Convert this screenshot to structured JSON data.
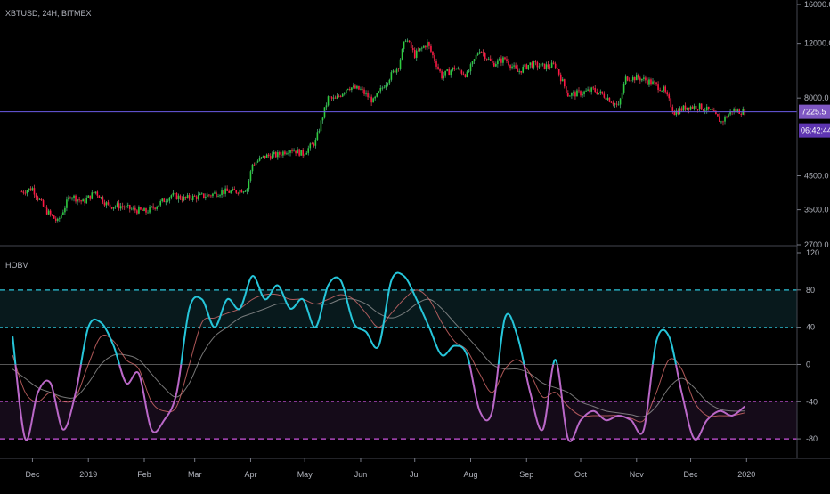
{
  "chart_data": [
    {
      "type": "candlestick",
      "title": "XBTUSD, 24H, BITMEX",
      "price_scale": "log",
      "yticks": [
        16000.0,
        12000.0,
        8000.0,
        4500.0,
        3500.0,
        2700.0
      ],
      "ytick_labels": [
        "16000.0",
        "12000.0",
        "8000.0",
        "4500.0",
        "3500.0",
        "2700.0"
      ],
      "ylim": [
        2700,
        16000
      ],
      "last_price": 7225.5,
      "last_price_label": "7225.5",
      "countdown_label": "06:42:44",
      "series": [
        {
          "name": "XBTUSD",
          "dates": [
            "2018-11-25",
            "2018-12-01",
            "2018-12-08",
            "2018-12-15",
            "2018-12-22",
            "2018-12-29",
            "2019-01-05",
            "2019-01-12",
            "2019-01-19",
            "2019-01-26",
            "2019-02-02",
            "2019-02-09",
            "2019-02-16",
            "2019-02-23",
            "2019-03-02",
            "2019-03-09",
            "2019-03-16",
            "2019-03-23",
            "2019-03-30",
            "2019-04-02",
            "2019-04-09",
            "2019-04-16",
            "2019-04-23",
            "2019-04-30",
            "2019-05-07",
            "2019-05-11",
            "2019-05-14",
            "2019-05-18",
            "2019-05-25",
            "2019-06-01",
            "2019-06-08",
            "2019-06-15",
            "2019-06-22",
            "2019-06-26",
            "2019-07-01",
            "2019-07-08",
            "2019-07-16",
            "2019-07-23",
            "2019-07-30",
            "2019-08-06",
            "2019-08-13",
            "2019-08-20",
            "2019-08-27",
            "2019-09-03",
            "2019-09-10",
            "2019-09-17",
            "2019-09-24",
            "2019-10-01",
            "2019-10-08",
            "2019-10-15",
            "2019-10-22",
            "2019-10-26",
            "2019-11-02",
            "2019-11-09",
            "2019-11-16",
            "2019-11-22",
            "2019-11-29",
            "2019-12-06",
            "2019-12-13",
            "2019-12-18",
            "2019-12-24",
            "2019-12-31"
          ],
          "close": [
            4000,
            4100,
            3500,
            3200,
            3900,
            3700,
            4000,
            3600,
            3600,
            3500,
            3450,
            3650,
            3900,
            3800,
            3850,
            3900,
            4000,
            4000,
            4100,
            4900,
            5200,
            5250,
            5500,
            5300,
            5800,
            7000,
            8000,
            7900,
            8700,
            8500,
            7800,
            9000,
            10200,
            12500,
            11000,
            12000,
            9400,
            10000,
            9500,
            11500,
            10300,
            10700,
            9700,
            10300,
            10100,
            10200,
            8200,
            8300,
            8500,
            8100,
            7500,
            9300,
            9300,
            9000,
            8500,
            7200,
            7500,
            7500,
            7200,
            6700,
            7300,
            7225.5
          ]
        }
      ]
    },
    {
      "type": "line",
      "title": "HOBV",
      "ylim": [
        -100,
        120
      ],
      "yticks": [
        120,
        80,
        40,
        0,
        -40,
        -80
      ],
      "ytick_labels": [
        "120",
        "80",
        "40",
        "0",
        "-40",
        "-80"
      ],
      "levels": [
        80,
        40,
        0,
        -40,
        -80
      ],
      "x_ticks": [
        {
          "date": "2018-12-01",
          "label": "Dec"
        },
        {
          "date": "2019-01-01",
          "label": "2019"
        },
        {
          "date": "2019-02-01",
          "label": "Feb"
        },
        {
          "date": "2019-03-01",
          "label": "Mar"
        },
        {
          "date": "2019-04-01",
          "label": "Apr"
        },
        {
          "date": "2019-05-01",
          "label": "May"
        },
        {
          "date": "2019-06-01",
          "label": "Jun"
        },
        {
          "date": "2019-07-01",
          "label": "Jul"
        },
        {
          "date": "2019-08-01",
          "label": "Aug"
        },
        {
          "date": "2019-09-01",
          "label": "Sep"
        },
        {
          "date": "2019-10-01",
          "label": "Oct"
        },
        {
          "date": "2019-11-01",
          "label": "Nov"
        },
        {
          "date": "2019-12-01",
          "label": "Dec"
        },
        {
          "date": "2020-01-01",
          "label": "2020"
        }
      ],
      "x": [
        "2018-11-20",
        "2018-11-27",
        "2018-12-04",
        "2018-12-11",
        "2018-12-18",
        "2018-12-25",
        "2019-01-01",
        "2019-01-08",
        "2019-01-15",
        "2019-01-22",
        "2019-01-29",
        "2019-02-05",
        "2019-02-12",
        "2019-02-19",
        "2019-02-26",
        "2019-03-05",
        "2019-03-12",
        "2019-03-19",
        "2019-03-26",
        "2019-04-02",
        "2019-04-09",
        "2019-04-16",
        "2019-04-23",
        "2019-04-30",
        "2019-05-07",
        "2019-05-14",
        "2019-05-21",
        "2019-05-28",
        "2019-06-04",
        "2019-06-11",
        "2019-06-18",
        "2019-06-25",
        "2019-07-02",
        "2019-07-09",
        "2019-07-16",
        "2019-07-23",
        "2019-07-30",
        "2019-08-06",
        "2019-08-13",
        "2019-08-20",
        "2019-08-27",
        "2019-09-03",
        "2019-09-10",
        "2019-09-17",
        "2019-09-24",
        "2019-10-01",
        "2019-10-08",
        "2019-10-15",
        "2019-10-22",
        "2019-10-29",
        "2019-11-05",
        "2019-11-12",
        "2019-11-19",
        "2019-11-26",
        "2019-12-03",
        "2019-12-10",
        "2019-12-17",
        "2019-12-24",
        "2019-12-31"
      ],
      "series": [
        {
          "color": "#00bcd4",
          "values": [
            30,
            -80,
            -30,
            -20,
            -70,
            -30,
            40,
            45,
            20,
            -20,
            -10,
            -70,
            -60,
            -30,
            60,
            70,
            40,
            70,
            60,
            95,
            70,
            85,
            60,
            70,
            40,
            85,
            90,
            45,
            35,
            20,
            90,
            95,
            70,
            40,
            10,
            20,
            10,
            -50,
            -50,
            50,
            30,
            -30,
            -70,
            5,
            -80,
            -60,
            -50,
            -60,
            -55,
            -60,
            -70,
            25,
            30,
            -30,
            -80,
            -60,
            -50,
            -55,
            -45
          ],
          "color_above_zero": "#26c6da",
          "color_below_zero": "#ba68c8"
        },
        {
          "color": "#e57373",
          "values": [
            10,
            -30,
            -40,
            -30,
            -40,
            -35,
            0,
            30,
            25,
            5,
            -5,
            -40,
            -50,
            -45,
            0,
            45,
            50,
            55,
            60,
            70,
            75,
            75,
            70,
            70,
            65,
            70,
            75,
            70,
            55,
            40,
            55,
            70,
            80,
            70,
            45,
            25,
            15,
            -10,
            -30,
            -5,
            5,
            -10,
            -35,
            -30,
            -45,
            -55,
            -55,
            -55,
            -55,
            -58,
            -60,
            -30,
            5,
            -5,
            -40,
            -55,
            -55,
            -55,
            -52
          ]
        },
        {
          "color": "#9e9e9e",
          "values": [
            -5,
            -15,
            -25,
            -30,
            -35,
            -35,
            -20,
            0,
            10,
            10,
            5,
            -10,
            -25,
            -35,
            -20,
            10,
            30,
            40,
            50,
            55,
            60,
            65,
            65,
            65,
            65,
            65,
            70,
            70,
            65,
            55,
            50,
            55,
            65,
            70,
            60,
            45,
            30,
            15,
            0,
            -5,
            -5,
            -10,
            -20,
            -25,
            -30,
            -40,
            -45,
            -50,
            -52,
            -54,
            -56,
            -45,
            -25,
            -15,
            -25,
            -40,
            -48,
            -50,
            -50
          ]
        }
      ]
    }
  ]
}
